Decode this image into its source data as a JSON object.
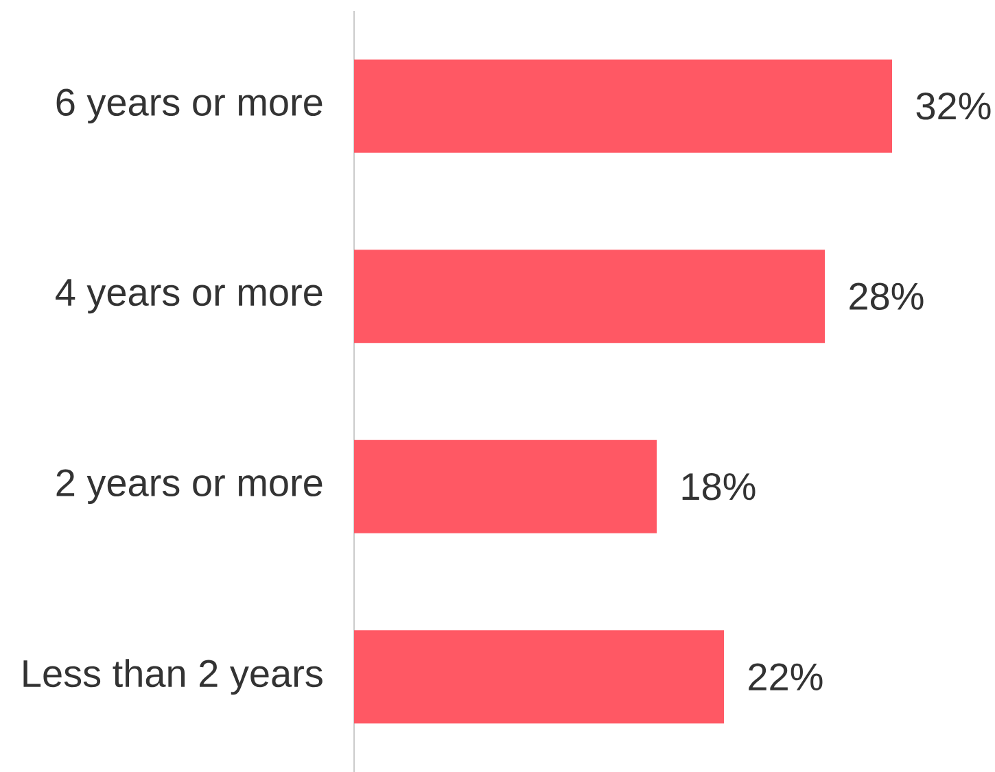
{
  "chart_data": {
    "type": "bar",
    "orientation": "horizontal",
    "categories": [
      "6 years or more",
      "4 years or more",
      "2 years or more",
      "Less than 2 years"
    ],
    "values": [
      32,
      28,
      18,
      22
    ],
    "value_labels": [
      "32%",
      "28%",
      "18%",
      "22%"
    ],
    "color": "#ff5864"
  }
}
